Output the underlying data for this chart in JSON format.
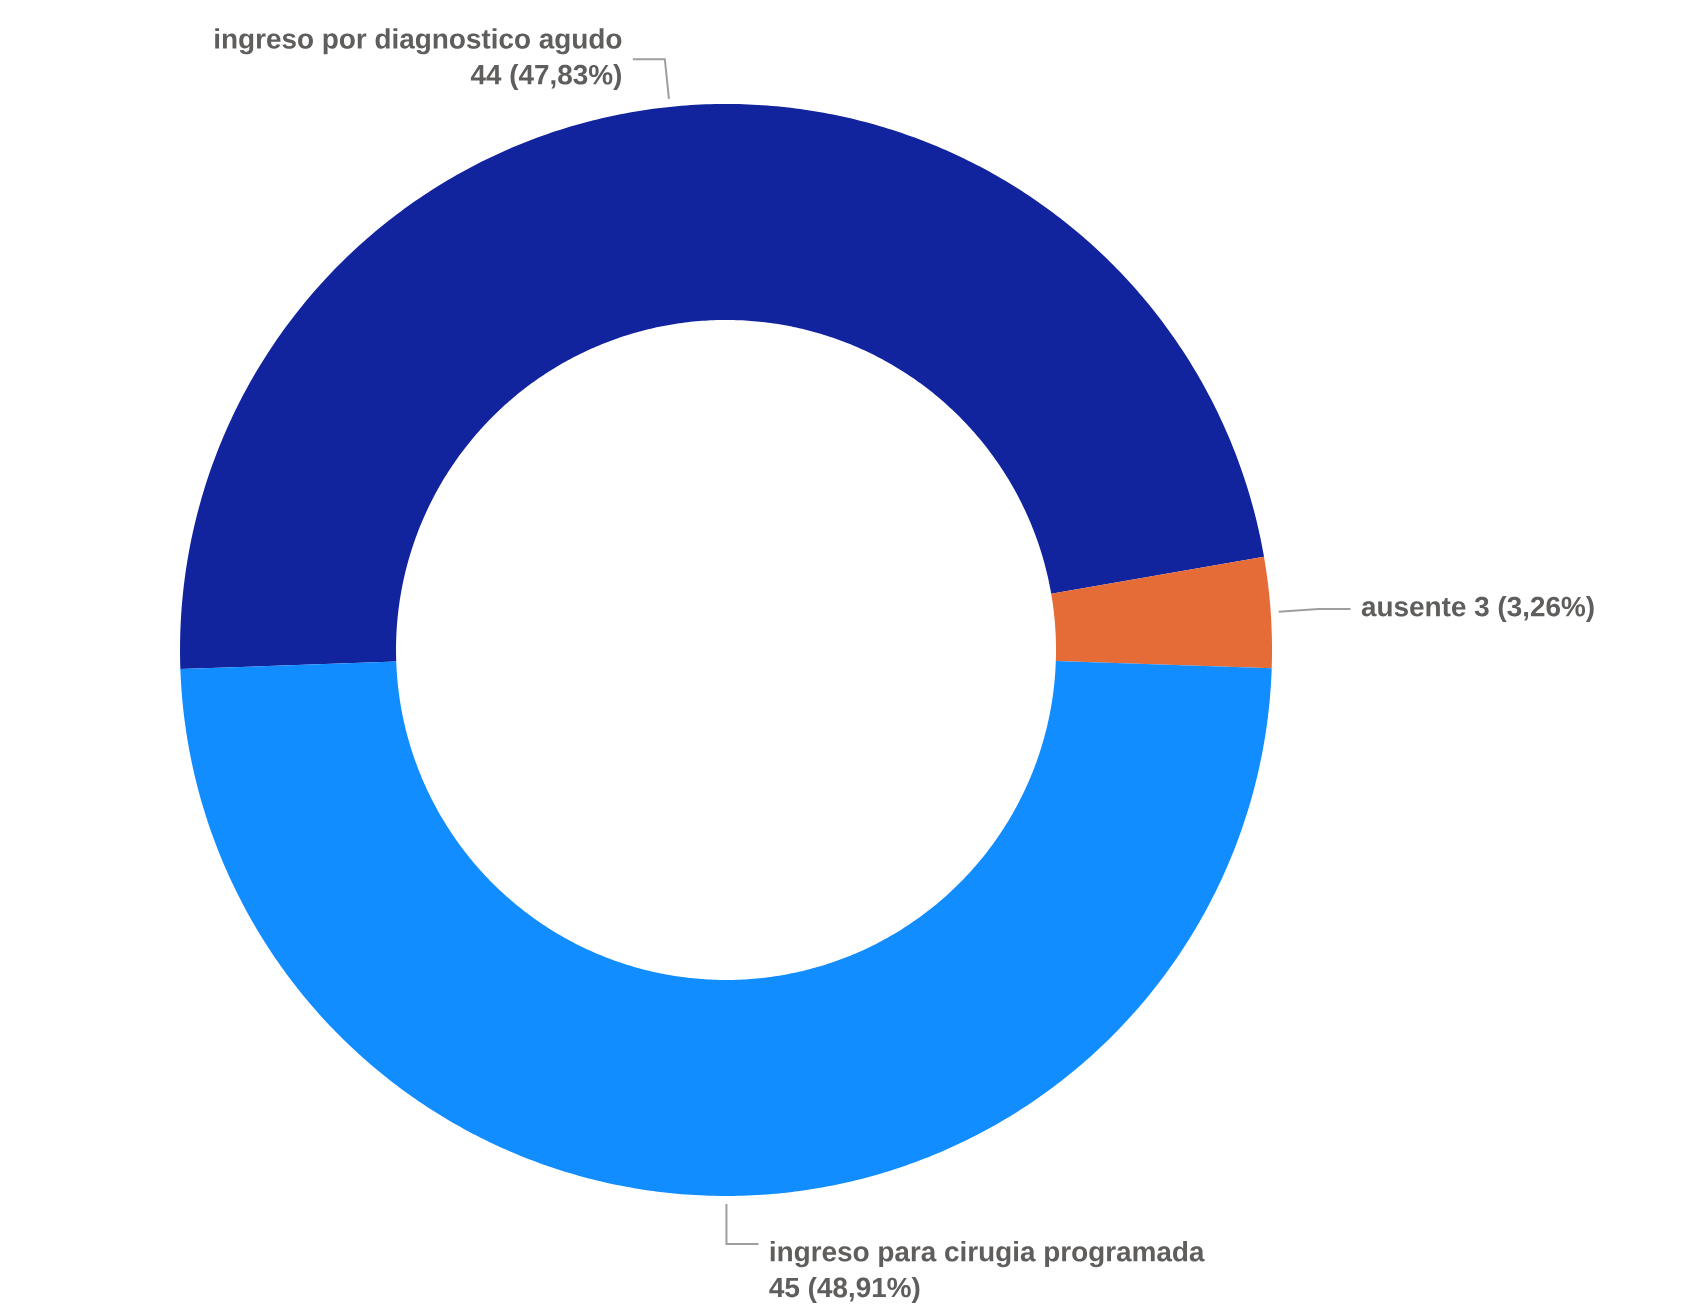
{
  "chart_data": {
    "type": "donut",
    "categories": [
      "ingreso por diagnostico agudo",
      "ausente",
      "ingreso para cirugia programada"
    ],
    "values": [
      44,
      3,
      45
    ],
    "colors": [
      "#12239e",
      "#e66c37",
      "#118dff"
    ],
    "value_labels": [
      "44 (47,83%)",
      "3 (3,26%)",
      "45 (48,91%)"
    ]
  }
}
